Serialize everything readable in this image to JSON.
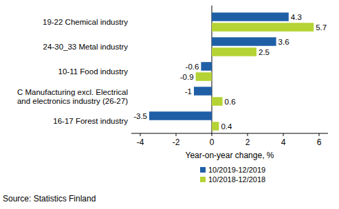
{
  "chart_data": {
    "type": "bar",
    "orientation": "horizontal",
    "categories": [
      "19-22 Chemical industry",
      "24-30_33 Metal industry",
      "10-11 Food industry",
      "C Manufacturing excl. Electrical\nand electronics industry (26-27)",
      "16-17 Forest industry"
    ],
    "series": [
      {
        "name": "10/2019-12/2019",
        "color": "#1f5fa6",
        "values": [
          4.3,
          3.6,
          -0.6,
          -1.0,
          -3.5
        ]
      },
      {
        "name": "10/2018-12/2018",
        "color": "#b5d334",
        "values": [
          5.7,
          2.5,
          -0.9,
          0.6,
          0.4
        ]
      }
    ],
    "xlabel": "Year-on-year change, %",
    "xlim": [
      -4.5,
      6.5
    ],
    "xticks": [
      -4,
      -2,
      0,
      2,
      4,
      6
    ],
    "data_labels": true,
    "grid": false,
    "legend": "bottom",
    "source": "Source: Statistics Finland"
  }
}
